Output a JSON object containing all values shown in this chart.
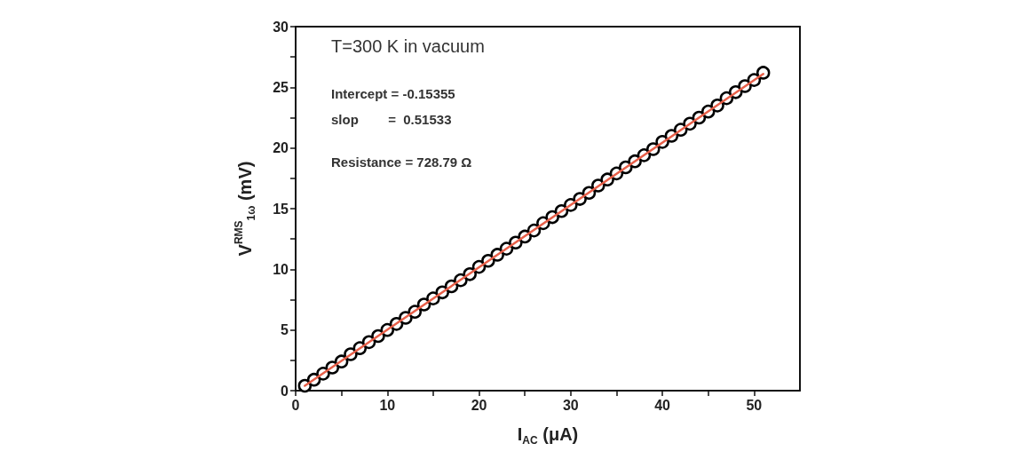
{
  "chart_data": {
    "type": "scatter",
    "xlabel": "I$_{AC}$ (μA)",
    "ylabel": "V$^{RMS}$$_{1ω}$ (mV)",
    "annotations": [
      "T=300 K in vacuum",
      "Intercept = -0.15355",
      "slop        =  0.51533",
      "Resistance = 728.79 Ω"
    ],
    "xlim": [
      0,
      55
    ],
    "ylim": [
      0,
      30
    ],
    "xticks": [
      0,
      {
        "value": 5,
        "label": null
      },
      10,
      {
        "value": 15,
        "label": null
      },
      20,
      {
        "value": 25,
        "label": null
      },
      30,
      {
        "value": 35,
        "label": null
      },
      40,
      {
        "value": 45,
        "label": null
      },
      50
    ],
    "yticks": [
      0,
      {
        "value": 2.5,
        "label": null
      },
      5,
      {
        "value": 7.5,
        "label": null
      },
      10,
      {
        "value": 12.5,
        "label": null
      },
      15,
      {
        "value": 17.5,
        "label": null
      },
      20,
      {
        "value": 22.5,
        "label": null
      },
      25,
      {
        "value": 27.5,
        "label": null
      },
      30
    ],
    "grid": false,
    "series": [
      {
        "marker": "circle",
        "color": "#000000",
        "x": [
          1,
          2,
          3,
          4,
          5,
          6,
          7,
          8,
          9,
          10,
          11,
          12,
          13,
          14,
          15,
          16,
          17,
          18,
          19,
          20,
          21,
          22,
          23,
          24,
          25,
          26,
          27,
          28,
          29,
          30,
          31,
          32,
          33,
          34,
          35,
          36,
          37,
          38,
          39,
          40,
          41,
          42,
          43,
          44,
          45,
          46,
          47,
          48,
          49,
          50,
          51
        ],
        "values": [
          0.4,
          0.9,
          1.4,
          1.9,
          2.4,
          3.0,
          3.5,
          4.0,
          4.5,
          5.0,
          5.5,
          6.0,
          6.5,
          7.1,
          7.6,
          8.1,
          8.6,
          9.1,
          9.6,
          10.2,
          10.7,
          11.2,
          11.7,
          12.2,
          12.7,
          13.2,
          13.8,
          14.3,
          14.8,
          15.3,
          15.8,
          16.3,
          16.9,
          17.4,
          17.9,
          18.4,
          18.9,
          19.4,
          19.9,
          20.5,
          21.0,
          21.5,
          22.0,
          22.5,
          23.0,
          23.5,
          24.1,
          24.6,
          25.1,
          25.6,
          26.2
        ]
      },
      {
        "type": "line",
        "marker": "none",
        "line_style": "solid",
        "color": "#e8604a",
        "x": [
          1,
          51
        ],
        "values": [
          0.4,
          26.1
        ]
      }
    ]
  }
}
